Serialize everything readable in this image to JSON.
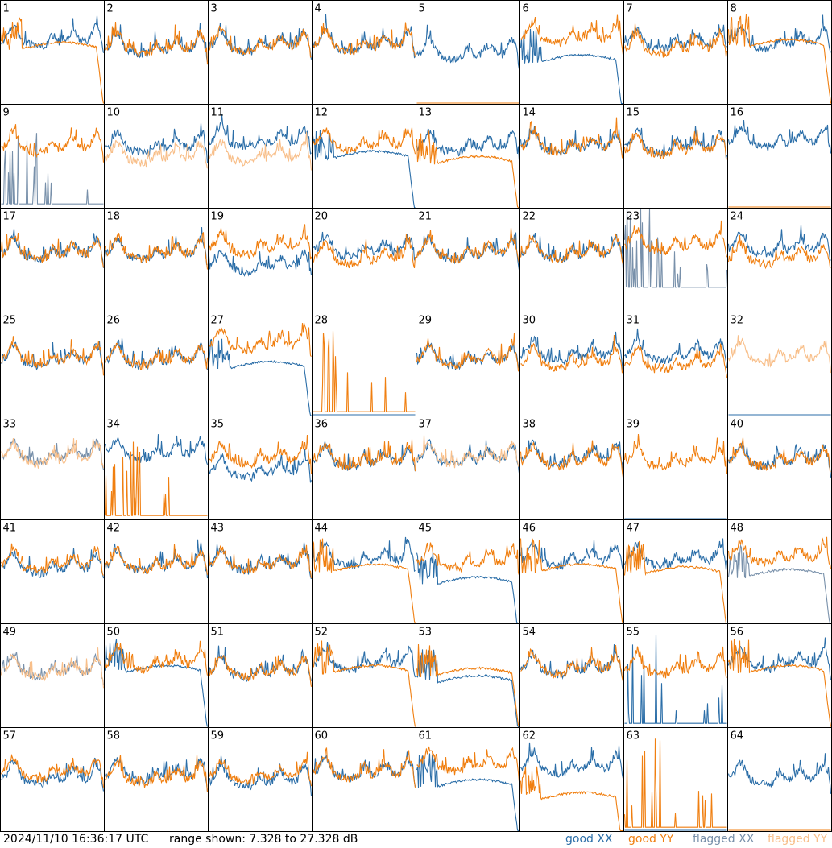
{
  "timestamp": "2024/11/10 16:36:17 UTC",
  "range_text": "range shown: 7.328 to 27.328 dB",
  "legend": [
    {
      "label": "good XX",
      "color": "#2b6ea8"
    },
    {
      "label": "good YY",
      "color": "#f07f10"
    },
    {
      "label": "flagged XX",
      "color": "#7890aa"
    },
    {
      "label": "flagged YY",
      "color": "#f8bf8a"
    }
  ],
  "chart_data": {
    "type": "line",
    "title": "",
    "ylim": [
      7.328,
      27.328
    ],
    "y_unit": "dB",
    "grid_layout": "8x8 small multiples",
    "series_styles": [
      "good XX",
      "good YY",
      "flagged XX",
      "flagged YY"
    ],
    "tiles": [
      {
        "n": 1,
        "xx": {
          "style": "normal",
          "level": 19.5
        },
        "yy": {
          "style": "hump",
          "level": 18.0,
          "flag": false
        }
      },
      {
        "n": 2,
        "xx": {
          "style": "normal",
          "level": 18.0
        },
        "yy": {
          "style": "normal",
          "level": 18.0
        }
      },
      {
        "n": 3,
        "xx": {
          "style": "normal",
          "level": 18.5
        },
        "yy": {
          "style": "normal",
          "level": 18.5
        }
      },
      {
        "n": 4,
        "xx": {
          "style": "normal",
          "level": 18.5
        },
        "yy": {
          "style": "normal",
          "level": 18.5
        }
      },
      {
        "n": 5,
        "xx": {
          "style": "normal",
          "level": 17.0
        },
        "yy": {
          "style": "dead",
          "level": 7.4
        }
      },
      {
        "n": 6,
        "xx": {
          "style": "hump",
          "level": 15.5
        },
        "yy": {
          "style": "normal",
          "level": 20.0
        }
      },
      {
        "n": 7,
        "xx": {
          "style": "normal",
          "level": 19.0
        },
        "yy": {
          "style": "normal",
          "level": 18.0
        }
      },
      {
        "n": 8,
        "xx": {
          "style": "normal",
          "level": 19.0
        },
        "yy": {
          "style": "hump",
          "level": 18.5
        }
      },
      {
        "n": 9,
        "xx": {
          "style": "spikes",
          "level": 8.0,
          "flag": true
        },
        "yy": {
          "style": "normal",
          "level": 19.0
        }
      },
      {
        "n": 10,
        "xx": {
          "style": "normal",
          "level": 19.0
        },
        "yy": {
          "style": "normal",
          "level": 17.0,
          "flag": true
        }
      },
      {
        "n": 11,
        "xx": {
          "style": "normal",
          "level": 20.0
        },
        "yy": {
          "style": "normal",
          "level": 17.0,
          "flag": true
        }
      },
      {
        "n": 12,
        "xx": {
          "style": "hump",
          "level": 17.0
        },
        "yy": {
          "style": "normal",
          "level": 19.5
        }
      },
      {
        "n": 13,
        "xx": {
          "style": "normal",
          "level": 19.0
        },
        "yy": {
          "style": "hump",
          "level": 16.0
        }
      },
      {
        "n": 14,
        "xx": {
          "style": "normal",
          "level": 19.0
        },
        "yy": {
          "style": "normal",
          "level": 19.0
        }
      },
      {
        "n": 15,
        "xx": {
          "style": "normal",
          "level": 19.0
        },
        "yy": {
          "style": "normal",
          "level": 18.5
        }
      },
      {
        "n": 16,
        "xx": {
          "style": "normal",
          "level": 20.0
        },
        "yy": {
          "style": "dead",
          "level": 7.4
        }
      },
      {
        "n": 17,
        "xx": {
          "style": "normal",
          "level": 18.5
        },
        "yy": {
          "style": "normal",
          "level": 18.5
        }
      },
      {
        "n": 18,
        "xx": {
          "style": "normal",
          "level": 18.5
        },
        "yy": {
          "style": "normal",
          "level": 18.5
        }
      },
      {
        "n": 19,
        "xx": {
          "style": "normal",
          "level": 16.0
        },
        "yy": {
          "style": "normal",
          "level": 19.5
        }
      },
      {
        "n": 20,
        "xx": {
          "style": "normal",
          "level": 19.0
        },
        "yy": {
          "style": "normal",
          "level": 17.5
        }
      },
      {
        "n": 21,
        "xx": {
          "style": "normal",
          "level": 18.5
        },
        "yy": {
          "style": "normal",
          "level": 18.5
        }
      },
      {
        "n": 22,
        "xx": {
          "style": "normal",
          "level": 18.5
        },
        "yy": {
          "style": "normal",
          "level": 18.5
        }
      },
      {
        "n": 23,
        "xx": {
          "style": "spikes",
          "level": 12.0,
          "flag": true
        },
        "yy": {
          "style": "normal",
          "level": 20.0
        }
      },
      {
        "n": 24,
        "xx": {
          "style": "normal",
          "level": 19.5
        },
        "yy": {
          "style": "normal",
          "level": 17.5
        }
      },
      {
        "n": 25,
        "xx": {
          "style": "normal",
          "level": 18.0
        },
        "yy": {
          "style": "normal",
          "level": 18.0
        }
      },
      {
        "n": 26,
        "xx": {
          "style": "normal",
          "level": 18.0
        },
        "yy": {
          "style": "normal",
          "level": 18.0
        }
      },
      {
        "n": 27,
        "xx": {
          "style": "hump",
          "level": 16.5
        },
        "yy": {
          "style": "normal",
          "level": 21.0
        }
      },
      {
        "n": 28,
        "xx": {
          "style": "dead",
          "level": 7.4
        },
        "yy": {
          "style": "spikes",
          "level": 8.0
        }
      },
      {
        "n": 29,
        "xx": {
          "style": "normal",
          "level": 18.0
        },
        "yy": {
          "style": "normal",
          "level": 18.0
        }
      },
      {
        "n": 30,
        "xx": {
          "style": "normal",
          "level": 19.0
        },
        "yy": {
          "style": "normal",
          "level": 17.5
        }
      },
      {
        "n": 31,
        "xx": {
          "style": "normal",
          "level": 19.0
        },
        "yy": {
          "style": "normal",
          "level": 17.0
        }
      },
      {
        "n": 32,
        "xx": {
          "style": "dead",
          "level": 7.4
        },
        "yy": {
          "style": "normal",
          "level": 18.5,
          "flag": true
        }
      },
      {
        "n": 33,
        "xx": {
          "style": "normal",
          "level": 19.5,
          "flag": true
        },
        "yy": {
          "style": "normal",
          "level": 19.0,
          "flag": true
        }
      },
      {
        "n": 34,
        "xx": {
          "style": "normal",
          "level": 20.0
        },
        "yy": {
          "style": "spikes",
          "level": 8.0
        }
      },
      {
        "n": 35,
        "xx": {
          "style": "normal",
          "level": 16.5
        },
        "yy": {
          "style": "normal",
          "level": 19.0
        }
      },
      {
        "n": 36,
        "xx": {
          "style": "normal",
          "level": 18.5
        },
        "yy": {
          "style": "normal",
          "level": 18.5
        }
      },
      {
        "n": 37,
        "xx": {
          "style": "normal",
          "level": 19.0
        },
        "yy": {
          "style": "normal",
          "level": 19.0,
          "flag": true
        }
      },
      {
        "n": 38,
        "xx": {
          "style": "normal",
          "level": 19.0
        },
        "yy": {
          "style": "normal",
          "level": 18.5
        }
      },
      {
        "n": 39,
        "xx": {
          "style": "dead",
          "level": 7.4
        },
        "yy": {
          "style": "normal",
          "level": 18.5
        }
      },
      {
        "n": 40,
        "xx": {
          "style": "normal",
          "level": 18.5
        },
        "yy": {
          "style": "normal",
          "level": 18.5
        }
      },
      {
        "n": 41,
        "xx": {
          "style": "normal",
          "level": 18.0
        },
        "yy": {
          "style": "normal",
          "level": 18.5
        }
      },
      {
        "n": 42,
        "xx": {
          "style": "normal",
          "level": 18.5
        },
        "yy": {
          "style": "normal",
          "level": 18.5
        }
      },
      {
        "n": 43,
        "xx": {
          "style": "normal",
          "level": 18.5
        },
        "yy": {
          "style": "normal",
          "level": 18.5
        }
      },
      {
        "n": 44,
        "xx": {
          "style": "normal",
          "level": 19.5
        },
        "yy": {
          "style": "hump",
          "level": 17.5
        }
      },
      {
        "n": 45,
        "xx": {
          "style": "hump",
          "level": 15.0
        },
        "yy": {
          "style": "normal",
          "level": 19.0
        }
      },
      {
        "n": 46,
        "xx": {
          "style": "normal",
          "level": 19.5
        },
        "yy": {
          "style": "hump",
          "level": 17.5
        }
      },
      {
        "n": 47,
        "xx": {
          "style": "normal",
          "level": 19.5
        },
        "yy": {
          "style": "hump",
          "level": 17.0
        }
      },
      {
        "n": 48,
        "xx": {
          "style": "hump",
          "level": 16.5,
          "flag": true
        },
        "yy": {
          "style": "normal",
          "level": 20.0
        }
      },
      {
        "n": 49,
        "xx": {
          "style": "normal",
          "level": 18.0,
          "flag": true
        },
        "yy": {
          "style": "normal",
          "level": 18.0,
          "flag": true
        }
      },
      {
        "n": 50,
        "xx": {
          "style": "hump",
          "level": 18.0
        },
        "yy": {
          "style": "normal",
          "level": 19.5
        }
      },
      {
        "n": 51,
        "xx": {
          "style": "normal",
          "level": 18.0
        },
        "yy": {
          "style": "normal",
          "level": 18.0
        }
      },
      {
        "n": 52,
        "xx": {
          "style": "normal",
          "level": 19.5
        },
        "yy": {
          "style": "hump",
          "level": 18.0
        }
      },
      {
        "n": 53,
        "xx": {
          "style": "hump",
          "level": 16.0
        },
        "yy": {
          "style": "hump",
          "level": 17.5
        }
      },
      {
        "n": 54,
        "xx": {
          "style": "normal",
          "level": 18.5
        },
        "yy": {
          "style": "normal",
          "level": 18.5
        }
      },
      {
        "n": 55,
        "xx": {
          "style": "spikes",
          "level": 8.0
        },
        "yy": {
          "style": "normal",
          "level": 18.5
        }
      },
      {
        "n": 56,
        "xx": {
          "style": "normal",
          "level": 19.5
        },
        "yy": {
          "style": "hump",
          "level": 18.0
        }
      },
      {
        "n": 57,
        "xx": {
          "style": "normal",
          "level": 17.5
        },
        "yy": {
          "style": "normal",
          "level": 18.5
        }
      },
      {
        "n": 58,
        "xx": {
          "style": "normal",
          "level": 18.0
        },
        "yy": {
          "style": "normal",
          "level": 17.5
        }
      },
      {
        "n": 59,
        "xx": {
          "style": "normal",
          "level": 17.0
        },
        "yy": {
          "style": "normal",
          "level": 18.0
        }
      },
      {
        "n": 60,
        "xx": {
          "style": "normal",
          "level": 18.5
        },
        "yy": {
          "style": "normal",
          "level": 18.5
        }
      },
      {
        "n": 61,
        "xx": {
          "style": "hump",
          "level": 16.0
        },
        "yy": {
          "style": "normal",
          "level": 20.0
        }
      },
      {
        "n": 62,
        "xx": {
          "style": "normal",
          "level": 19.5
        },
        "yy": {
          "style": "hump",
          "level": 13.5
        }
      },
      {
        "n": 63,
        "xx": {
          "style": "dead",
          "level": 7.4
        },
        "yy": {
          "style": "spikes",
          "level": 8.0
        }
      },
      {
        "n": 64,
        "xx": {
          "style": "normal",
          "level": 17.5
        },
        "yy": {
          "style": "dead",
          "level": 7.4
        }
      }
    ]
  }
}
